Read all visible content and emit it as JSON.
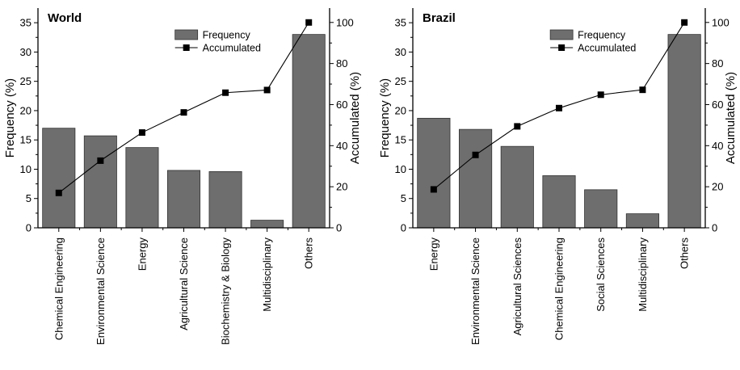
{
  "colors": {
    "bar_fill": "#6e6e6e",
    "bar_stroke": "#333333",
    "line": "#000000",
    "marker": "#000000"
  },
  "chart_data": [
    {
      "type": "bar",
      "title": "World",
      "ylabel": "Frequency (%)",
      "y2label": "Accumulated (%)",
      "ylim": [
        0,
        37.5
      ],
      "y2lim": [
        0,
        107
      ],
      "yticks": [
        0,
        5,
        10,
        15,
        20,
        25,
        30,
        35
      ],
      "y2ticks": [
        0,
        20,
        40,
        60,
        80,
        100
      ],
      "categories": [
        "Chemical Engineering",
        "Environmental Science",
        "Energy",
        "Agricultural Science",
        "Biochemistry & Biology",
        "Multidisciplinary",
        "Others"
      ],
      "series": [
        {
          "name": "Frequency",
          "type": "bar",
          "axis": "left",
          "values": [
            17,
            15.7,
            13.7,
            9.8,
            9.6,
            1.3,
            33
          ]
        },
        {
          "name": "Accumulated",
          "type": "line",
          "axis": "right",
          "marker": "square",
          "values": [
            17,
            32.7,
            46.4,
            56.2,
            65.8,
            67.1,
            100
          ]
        }
      ],
      "legend": {
        "position": "top-right",
        "labels": [
          "Frequency",
          "Accumulated"
        ]
      },
      "grid": false
    },
    {
      "type": "bar",
      "title": "Brazil",
      "ylabel": "Frequency (%)",
      "y2label": "Accumulated (%)",
      "ylim": [
        0,
        37.5
      ],
      "y2lim": [
        0,
        107
      ],
      "yticks": [
        0,
        5,
        10,
        15,
        20,
        25,
        30,
        35
      ],
      "y2ticks": [
        0,
        20,
        40,
        60,
        80,
        100
      ],
      "categories": [
        "Energy",
        "Environmental Science",
        "Agricultural Sciences",
        "Chemical Engineering",
        "Social Sciences",
        "Multidisciplinary",
        "Others"
      ],
      "series": [
        {
          "name": "Frequency",
          "type": "bar",
          "axis": "left",
          "values": [
            18.7,
            16.8,
            13.9,
            8.9,
            6.5,
            2.4,
            33
          ]
        },
        {
          "name": "Accumulated",
          "type": "line",
          "axis": "right",
          "marker": "square",
          "values": [
            18.7,
            35.5,
            49.4,
            58.3,
            64.8,
            67.2,
            100
          ]
        }
      ],
      "legend": {
        "position": "top-right",
        "labels": [
          "Frequency",
          "Accumulated"
        ]
      },
      "grid": false
    }
  ]
}
